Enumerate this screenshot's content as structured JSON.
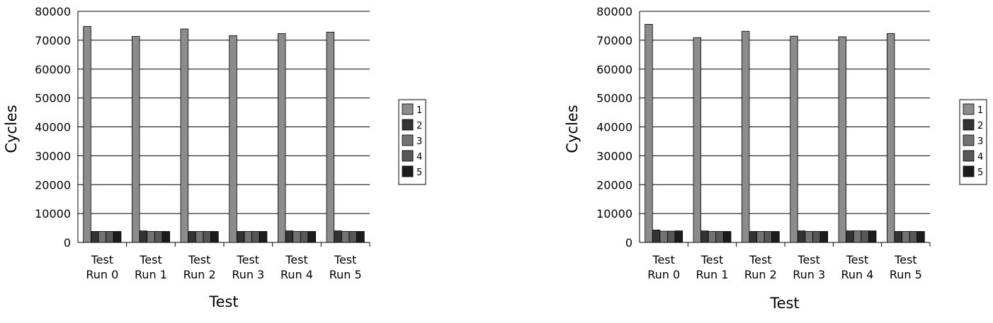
{
  "chart_data": [
    {
      "type": "bar",
      "xlabel": "Test",
      "ylabel": "Cycles",
      "ylim": [
        0,
        80000
      ],
      "yticks": [
        "0",
        "10000",
        "20000",
        "30000",
        "40000",
        "50000",
        "60000",
        "70000",
        "80000"
      ],
      "grid": true,
      "legend_position": "right",
      "categories": [
        [
          "Test",
          "Run 0"
        ],
        [
          "Test",
          "Run 1"
        ],
        [
          "Test",
          "Run 2"
        ],
        [
          "Test",
          "Run 3"
        ],
        [
          "Test",
          "Run 4"
        ],
        [
          "Test",
          "Run 5"
        ]
      ],
      "series": [
        {
          "name": "1",
          "color": "#8c8c8c",
          "values": [
            74800,
            71300,
            73900,
            71600,
            72300,
            72800
          ]
        },
        {
          "name": "2",
          "color": "#333333",
          "values": [
            3800,
            4000,
            3800,
            3800,
            4000,
            4000
          ]
        },
        {
          "name": "3",
          "color": "#737373",
          "values": [
            3800,
            3800,
            3800,
            3800,
            3800,
            3800
          ]
        },
        {
          "name": "4",
          "color": "#575757",
          "values": [
            3800,
            3800,
            3800,
            3800,
            3800,
            3800
          ]
        },
        {
          "name": "5",
          "color": "#1c1c1c",
          "values": [
            3800,
            3800,
            3800,
            3800,
            3800,
            3800
          ]
        }
      ]
    },
    {
      "type": "bar",
      "xlabel": "Test",
      "ylabel": "Cycles",
      "ylim": [
        0,
        80000
      ],
      "yticks": [
        "0",
        "10000",
        "20000",
        "30000",
        "40000",
        "50000",
        "60000",
        "70000",
        "80000"
      ],
      "grid": true,
      "legend_position": "right",
      "categories": [
        [
          "Test",
          "Run 0"
        ],
        [
          "Test",
          "Run 1"
        ],
        [
          "Test",
          "Run 2"
        ],
        [
          "Test",
          "Run 3"
        ],
        [
          "Test",
          "Run 4"
        ],
        [
          "Test",
          "Run 5"
        ]
      ],
      "series": [
        {
          "name": "1",
          "color": "#8c8c8c",
          "values": [
            75500,
            70900,
            73100,
            71400,
            71200,
            72300
          ]
        },
        {
          "name": "2",
          "color": "#333333",
          "values": [
            4300,
            4000,
            3800,
            4000,
            4000,
            3800
          ]
        },
        {
          "name": "3",
          "color": "#737373",
          "values": [
            3900,
            3800,
            3800,
            3800,
            4000,
            3800
          ]
        },
        {
          "name": "4",
          "color": "#575757",
          "values": [
            3900,
            3800,
            3800,
            3800,
            4000,
            3800
          ]
        },
        {
          "name": "5",
          "color": "#1c1c1c",
          "values": [
            4000,
            3800,
            3800,
            3800,
            4000,
            3800
          ]
        }
      ]
    }
  ]
}
